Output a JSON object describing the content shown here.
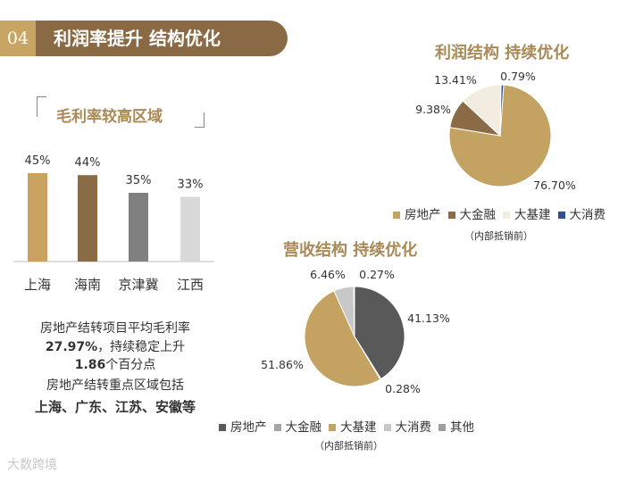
{
  "banner": {
    "number": "04",
    "title": "利润率提升  结构优化"
  },
  "left_panel": {
    "subtitle": "毛利率较高区域",
    "desc_lines": [
      {
        "text": "房地产结转项目平均毛利率",
        "bold": false
      },
      {
        "text": "27.97%，持续稳定上升",
        "bold": "27.97%"
      },
      {
        "text": "1.86个百分点",
        "bold": "1.86"
      },
      {
        "text": "房地产结转重点区域包括",
        "bold": false
      },
      {
        "text": "上海、广东、江苏、安徽等",
        "bold": true
      }
    ]
  },
  "profit_chart": {
    "title": "利润结构  持续优化",
    "note": "（内部抵销前）"
  },
  "revenue_chart": {
    "title": "营收结构  持续优化",
    "note": "（内部抵销前）"
  },
  "watermark": "大数跨境",
  "chart_data": [
    {
      "type": "bar",
      "title": "毛利率较高区域",
      "categories": [
        "上海",
        "海南",
        "京津冀",
        "江西"
      ],
      "values": [
        45,
        44,
        35,
        33
      ],
      "labels": [
        "45%",
        "44%",
        "35%",
        "33%"
      ],
      "colors": [
        "#c9a25f",
        "#8b6a46",
        "#808080",
        "#d9d9d9"
      ],
      "ylim": [
        0,
        50
      ]
    },
    {
      "type": "pie",
      "title": "利润结构  持续优化",
      "categories": [
        "房地产",
        "大金融",
        "大基建",
        "大消费"
      ],
      "values": [
        76.7,
        9.38,
        13.41,
        0.79
      ],
      "labels": [
        "76.70%",
        "9.38%",
        "13.41%",
        "0.79%"
      ],
      "colors": [
        "#c4a261",
        "#8b6a46",
        "#f3ece0",
        "#2f4f8f"
      ],
      "legend": "bottom"
    },
    {
      "type": "pie",
      "title": "营收结构  持续优化",
      "categories": [
        "房地产",
        "大金融",
        "大基建",
        "大消费",
        "其他"
      ],
      "values": [
        41.13,
        0.28,
        51.86,
        6.46,
        0.27
      ],
      "labels": [
        "41.13%",
        "0.28%",
        "51.86%",
        "6.46%",
        "0.27%"
      ],
      "colors": [
        "#595959",
        "#a6a6a6",
        "#c4a261",
        "#c8c8c8",
        "#9e9e9e"
      ],
      "legend": "bottom"
    }
  ]
}
